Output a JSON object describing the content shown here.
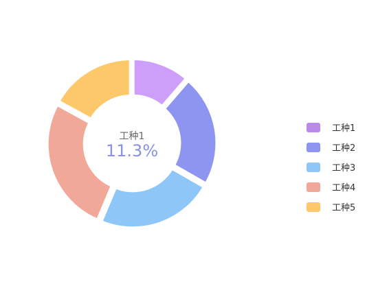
{
  "chart_data": {
    "type": "pie",
    "style": "donut",
    "categories": [
      "工种1",
      "工种2",
      "工种3",
      "工种4",
      "工种5"
    ],
    "values": [
      11.3,
      22.0,
      23.0,
      26.7,
      17.0
    ],
    "colors": [
      "#cd9ffb",
      "#8d95f0",
      "#8dc6f7",
      "#f2a898",
      "#fdc86a"
    ],
    "legend_colors": [
      "#b98ae8",
      "#8d95f0",
      "#8dc6f7",
      "#f2a898",
      "#fdc86a"
    ],
    "center_label": "工种1",
    "center_value": "11.3%",
    "legend_position": "right"
  }
}
